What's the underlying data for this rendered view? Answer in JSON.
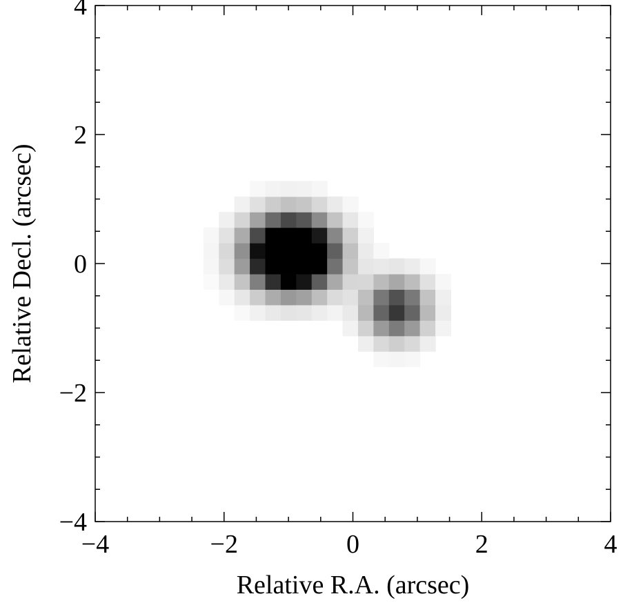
{
  "chart_data": {
    "type": "heatmap",
    "title": "",
    "xlabel": "Relative R.A. (arcsec)",
    "ylabel": "Relative Decl. (arcsec)",
    "xlim": [
      -4,
      4
    ],
    "ylim": [
      -4,
      4
    ],
    "grid": false,
    "colormap": "inverted-grayscale",
    "colors": {
      "low": "#ffffff",
      "high": "#000000",
      "axes": "#000000"
    },
    "x_ticks": [
      -4,
      -2,
      0,
      2,
      4
    ],
    "y_ticks": [
      -4,
      -2,
      0,
      2,
      4
    ],
    "x_tick_labels": [
      "−4",
      "−2",
      "0",
      "2",
      "4"
    ],
    "y_tick_labels": [
      "−4",
      "−2",
      "0",
      "2",
      "4"
    ],
    "minor_tick_step": 0.5,
    "pixel_size_arcsec": 0.24,
    "sources": [
      {
        "ra": -0.95,
        "dec": 0.15,
        "sigma_ra": 0.45,
        "sigma_dec": 0.38,
        "peak": 1.9
      },
      {
        "ra": 0.68,
        "dec": -0.7,
        "sigma_ra": 0.33,
        "sigma_dec": 0.32,
        "peak": 0.8
      }
    ],
    "display_max": 1.0
  }
}
